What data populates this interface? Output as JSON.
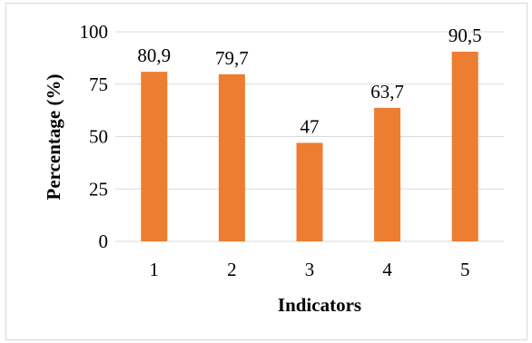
{
  "chart_data": {
    "type": "bar",
    "categories": [
      "1",
      "2",
      "3",
      "4",
      "5"
    ],
    "values": [
      80.9,
      79.7,
      47,
      63.7,
      90.5
    ],
    "data_labels": [
      "80,9",
      "79,7",
      "47",
      "63,7",
      "90,5"
    ],
    "xlabel": "Indicators",
    "ylabel": "Percentage (%)",
    "ylim": [
      0,
      100
    ],
    "yticks": [
      0,
      25,
      50,
      75,
      100
    ],
    "ytick_labels": [
      "0",
      "25",
      "50",
      "75",
      "100"
    ],
    "grid": true,
    "bar_color": "#ed7d31",
    "gridline_color": "#d9d9d9"
  }
}
